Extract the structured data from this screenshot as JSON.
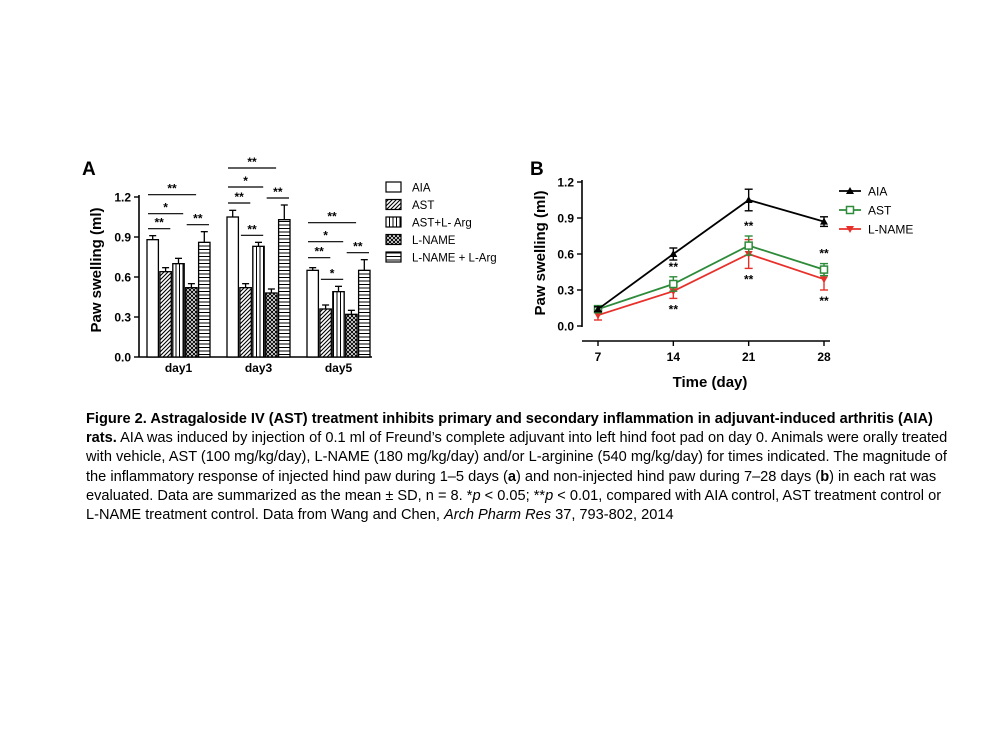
{
  "chart_data": [
    {
      "panel_letter": "A",
      "type": "bar",
      "ylabel": "Paw swelling (ml)",
      "xlabel": "",
      "ylim": [
        0,
        1.2
      ],
      "yticks": [
        "0.0",
        "0.3",
        "0.6",
        "0.9",
        "1.2"
      ],
      "categories": [
        "day1",
        "day3",
        "day5"
      ],
      "series": [
        {
          "name": "AIA",
          "pattern": "open",
          "values": [
            0.88,
            1.05,
            0.65
          ],
          "errors": [
            0.03,
            0.05,
            0.02
          ]
        },
        {
          "name": "AST",
          "pattern": "diagonal",
          "values": [
            0.64,
            0.52,
            0.36
          ],
          "errors": [
            0.03,
            0.03,
            0.03
          ]
        },
        {
          "name": "AST+L- Arg",
          "pattern": "vertical",
          "values": [
            0.7,
            0.83,
            0.49
          ],
          "errors": [
            0.04,
            0.03,
            0.04
          ]
        },
        {
          "name": "L-NAME",
          "pattern": "crosshatch",
          "values": [
            0.52,
            0.48,
            0.32
          ],
          "errors": [
            0.03,
            0.03,
            0.03
          ]
        },
        {
          "name": "L-NAME + L-Arg",
          "pattern": "horizontal",
          "values": [
            0.86,
            1.03,
            0.65
          ],
          "errors": [
            0.08,
            0.11,
            0.08
          ]
        }
      ],
      "significance": [
        {
          "group": "day1",
          "from": 0,
          "to": 1,
          "label": "**"
        },
        {
          "group": "day1",
          "from": 0,
          "to": 2,
          "label": "*"
        },
        {
          "group": "day1",
          "from": 0,
          "to": 3,
          "label": "**"
        },
        {
          "group": "day1",
          "from": 3,
          "to": 4,
          "label": "**"
        },
        {
          "group": "day3",
          "from": 0,
          "to": 1,
          "label": "**"
        },
        {
          "group": "day3",
          "from": 0,
          "to": 2,
          "label": "*"
        },
        {
          "group": "day3",
          "from": 0,
          "to": 3,
          "label": "**"
        },
        {
          "group": "day3",
          "from": 1,
          "to": 2,
          "label": "**"
        },
        {
          "group": "day3",
          "from": 3,
          "to": 4,
          "label": "**"
        },
        {
          "group": "day5",
          "from": 0,
          "to": 1,
          "label": "**"
        },
        {
          "group": "day5",
          "from": 0,
          "to": 2,
          "label": "*"
        },
        {
          "group": "day5",
          "from": 0,
          "to": 3,
          "label": "**"
        },
        {
          "group": "day5",
          "from": 1,
          "to": 2,
          "label": "*"
        },
        {
          "group": "day5",
          "from": 3,
          "to": 4,
          "label": "**"
        }
      ],
      "legend_placement": "right"
    },
    {
      "panel_letter": "B",
      "type": "line",
      "ylabel": "Paw swelling (ml)",
      "xlabel": "Time (day)",
      "ylim": [
        0,
        1.2
      ],
      "yticks": [
        "0.0",
        "0.3",
        "0.6",
        "0.9",
        "1.2"
      ],
      "x": [
        7,
        14,
        21,
        28
      ],
      "xticks": [
        "7",
        "14",
        "21",
        "28"
      ],
      "series": [
        {
          "name": "AIA",
          "color": "#000000",
          "marker": "triangle-up",
          "values": [
            0.14,
            0.6,
            1.05,
            0.87
          ],
          "errors": [
            0.02,
            0.05,
            0.09,
            0.04
          ]
        },
        {
          "name": "AST",
          "color": "#2e8b3a",
          "marker": "square-open",
          "values": [
            0.14,
            0.35,
            0.67,
            0.47
          ],
          "errors": [
            0.03,
            0.06,
            0.08,
            0.05
          ]
        },
        {
          "name": "L-NAME",
          "color": "#e8302a",
          "marker": "triangle-down",
          "values": [
            0.09,
            0.29,
            0.6,
            0.39
          ],
          "errors": [
            0.04,
            0.06,
            0.12,
            0.09
          ]
        }
      ],
      "annotations": [
        {
          "x": 14,
          "position": "above",
          "label": "**"
        },
        {
          "x": 14,
          "position": "below",
          "label": "**"
        },
        {
          "x": 21,
          "position": "above",
          "label": "**"
        },
        {
          "x": 21,
          "position": "below",
          "label": "**"
        },
        {
          "x": 28,
          "position": "above",
          "label": "**"
        },
        {
          "x": 28,
          "position": "below",
          "label": "**"
        }
      ],
      "legend_placement": "top-right"
    }
  ],
  "caption": {
    "title": "Figure 2. Astragaloside IV (AST) treatment inhibits primary and secondary inflammation in adjuvant-induced arthritis (AIA) rats.",
    "body_1": " AIA was induced by injection of 0.1 ml of Freund’s complete adjuvant into left hind foot pad on day 0. Animals were orally treated with vehicle, AST (100 mg/kg/day), L-NAME (180 mg/kg/day) and/or L-arginine (540 mg/kg/day) for times indicated. The magnitude of the inflammatory response of injected hind paw during 1–5 days (",
    "ref_a": "a",
    "body_2": ") and non-injected hind paw during 7–28 days (",
    "ref_b": "b",
    "body_3": ") in each rat was evaluated. Data are summarized as the mean ± SD, n = 8. *",
    "p1": "p",
    "body_4": " < 0.05; **",
    "p2": "p",
    "body_5": " < 0.01, compared with AIA control, AST treatment control or L-NAME treatment control. Data from Wang and Chen, ",
    "journal": "Arch Pharm Res",
    "body_6": " 37, 793-802, 2014"
  }
}
